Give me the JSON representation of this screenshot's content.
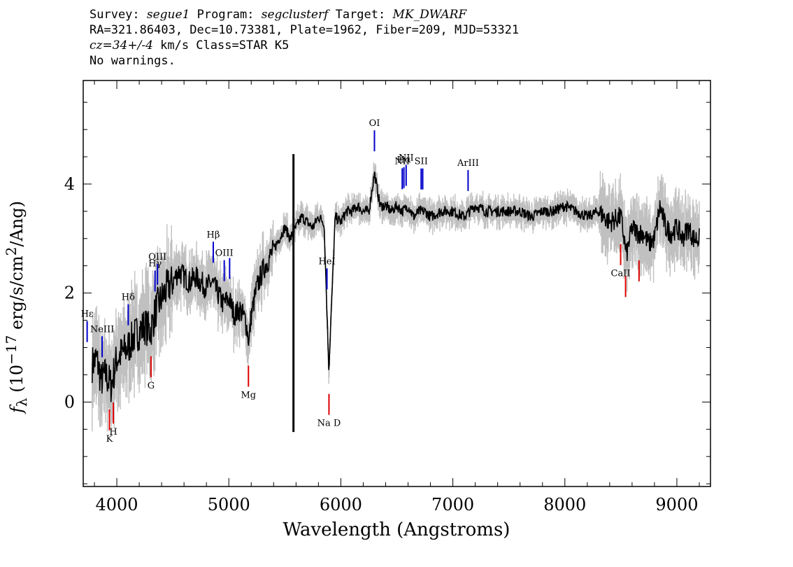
{
  "header": {
    "line1_survey_label": "Survey: ",
    "line1_survey_value": "segue1",
    "line1_program_label": " Program: ",
    "line1_program_value": "segclusterf",
    "line1_target_label": " Target: ",
    "line1_target_value": "MK_DWARF",
    "line2": "RA=321.86403, Dec=10.73381, Plate=1962, Fiber=209, MJD=53321",
    "line3_cz": "cz=34+/-4",
    "line3_rest": " km/s Class=STAR K5",
    "line4": "No warnings."
  },
  "chart_data": {
    "type": "line",
    "xlabel": "Wavelength (Angstroms)",
    "ylabel": "f_λ (10^-17 erg/s/cm^2/Ang)",
    "xlim": [
      3700,
      9300
    ],
    "ylim": [
      -1.55,
      5.9
    ],
    "xticks": [
      4000,
      5000,
      6000,
      7000,
      8000,
      9000
    ],
    "yticks": [
      0,
      2,
      4
    ],
    "grid": false,
    "colors": {
      "spectrum": "#000000",
      "error": "#c0c0c0",
      "emission": "#0000cc",
      "absorption": "#dd0000"
    },
    "series": [
      {
        "role": "spectrum",
        "x": [
          3780,
          3820,
          3860,
          3900,
          3950,
          4000,
          4050,
          4100,
          4150,
          4200,
          4250,
          4300,
          4350,
          4400,
          4450,
          4500,
          4550,
          4600,
          4650,
          4700,
          4750,
          4800,
          4850,
          4900,
          4950,
          5000,
          5050,
          5100,
          5150,
          5180,
          5200,
          5250,
          5300,
          5350,
          5400,
          5450,
          5500,
          5550,
          5600,
          5650,
          5700,
          5750,
          5800,
          5850,
          5893,
          5950,
          6000,
          6050,
          6100,
          6150,
          6200,
          6250,
          6300,
          6350,
          6400,
          6450,
          6500,
          6550,
          6600,
          6650,
          6700,
          6750,
          6800,
          6900,
          7000,
          7100,
          7200,
          7300,
          7400,
          7500,
          7600,
          7700,
          7800,
          7900,
          8000,
          8100,
          8200,
          8300,
          8400,
          8500,
          8550,
          8600,
          8650,
          8700,
          8750,
          8800,
          8850,
          8900,
          8950,
          9000,
          9050,
          9100,
          9150,
          9200
        ],
        "y": [
          0.7,
          0.8,
          0.4,
          0.5,
          0.3,
          0.8,
          0.9,
          1.0,
          1.2,
          1.3,
          1.4,
          1.3,
          1.7,
          1.9,
          2.1,
          2.2,
          2.4,
          2.3,
          2.2,
          2.3,
          2.2,
          2.1,
          2.2,
          2.0,
          1.8,
          1.9,
          1.6,
          1.7,
          1.5,
          1.1,
          1.6,
          2.1,
          2.4,
          2.6,
          2.8,
          3.0,
          3.2,
          3.0,
          3.2,
          3.4,
          3.3,
          3.2,
          3.4,
          3.3,
          0.6,
          3.4,
          3.3,
          3.5,
          3.5,
          3.6,
          3.5,
          3.5,
          4.2,
          3.6,
          3.6,
          3.5,
          3.6,
          3.5,
          3.6,
          3.4,
          3.5,
          3.5,
          3.4,
          3.5,
          3.5,
          3.4,
          3.6,
          3.5,
          3.5,
          3.5,
          3.5,
          3.4,
          3.5,
          3.5,
          3.6,
          3.5,
          3.4,
          3.5,
          3.3,
          3.4,
          2.7,
          3.2,
          3.1,
          3.1,
          2.9,
          3.0,
          3.6,
          3.2,
          3.1,
          3.2,
          3.0,
          3.2,
          3.0,
          3.0
        ]
      }
    ],
    "sky_spikes": [
      {
        "x": 5577,
        "y_low": -0.55,
        "y_high": 4.55
      }
    ],
    "lines": [
      {
        "label": "Hε",
        "x": 3735,
        "kind": "emission"
      },
      {
        "label": "NeIII",
        "x": 3869,
        "kind": "emission"
      },
      {
        "label": "Hδ",
        "x": 4102,
        "kind": "emission"
      },
      {
        "label": "Hγ",
        "x": 4341,
        "kind": "emission"
      },
      {
        "label": "OIII",
        "x": 4363,
        "kind": "emission"
      },
      {
        "label": "Hβ",
        "x": 4861,
        "kind": "emission"
      },
      {
        "label": "OIII",
        "x": 4959,
        "kind": "emission"
      },
      {
        "label": "",
        "x": 5007,
        "kind": "emission"
      },
      {
        "label": "HeI",
        "x": 5876,
        "kind": "emission"
      },
      {
        "label": "OI",
        "x": 6300,
        "kind": "emission"
      },
      {
        "label": "NII",
        "x": 6548,
        "kind": "emission"
      },
      {
        "label": "Hα",
        "x": 6563,
        "kind": "emission"
      },
      {
        "label": "NII",
        "x": 6583,
        "kind": "emission"
      },
      {
        "label": "SII",
        "x": 6717,
        "kind": "emission"
      },
      {
        "label": "",
        "x": 6731,
        "kind": "emission"
      },
      {
        "label": "ArIII",
        "x": 7136,
        "kind": "emission"
      },
      {
        "label": "K",
        "x": 3934,
        "kind": "absorption"
      },
      {
        "label": "H",
        "x": 3969,
        "kind": "absorption"
      },
      {
        "label": "G",
        "x": 4305,
        "kind": "absorption"
      },
      {
        "label": "Mg",
        "x": 5175,
        "kind": "absorption"
      },
      {
        "label": "Na D",
        "x": 5894,
        "kind": "absorption"
      },
      {
        "label": "CaII",
        "x": 8498,
        "kind": "absorption"
      },
      {
        "label": "",
        "x": 8542,
        "kind": "absorption"
      },
      {
        "label": "",
        "x": 8662,
        "kind": "absorption"
      }
    ]
  }
}
